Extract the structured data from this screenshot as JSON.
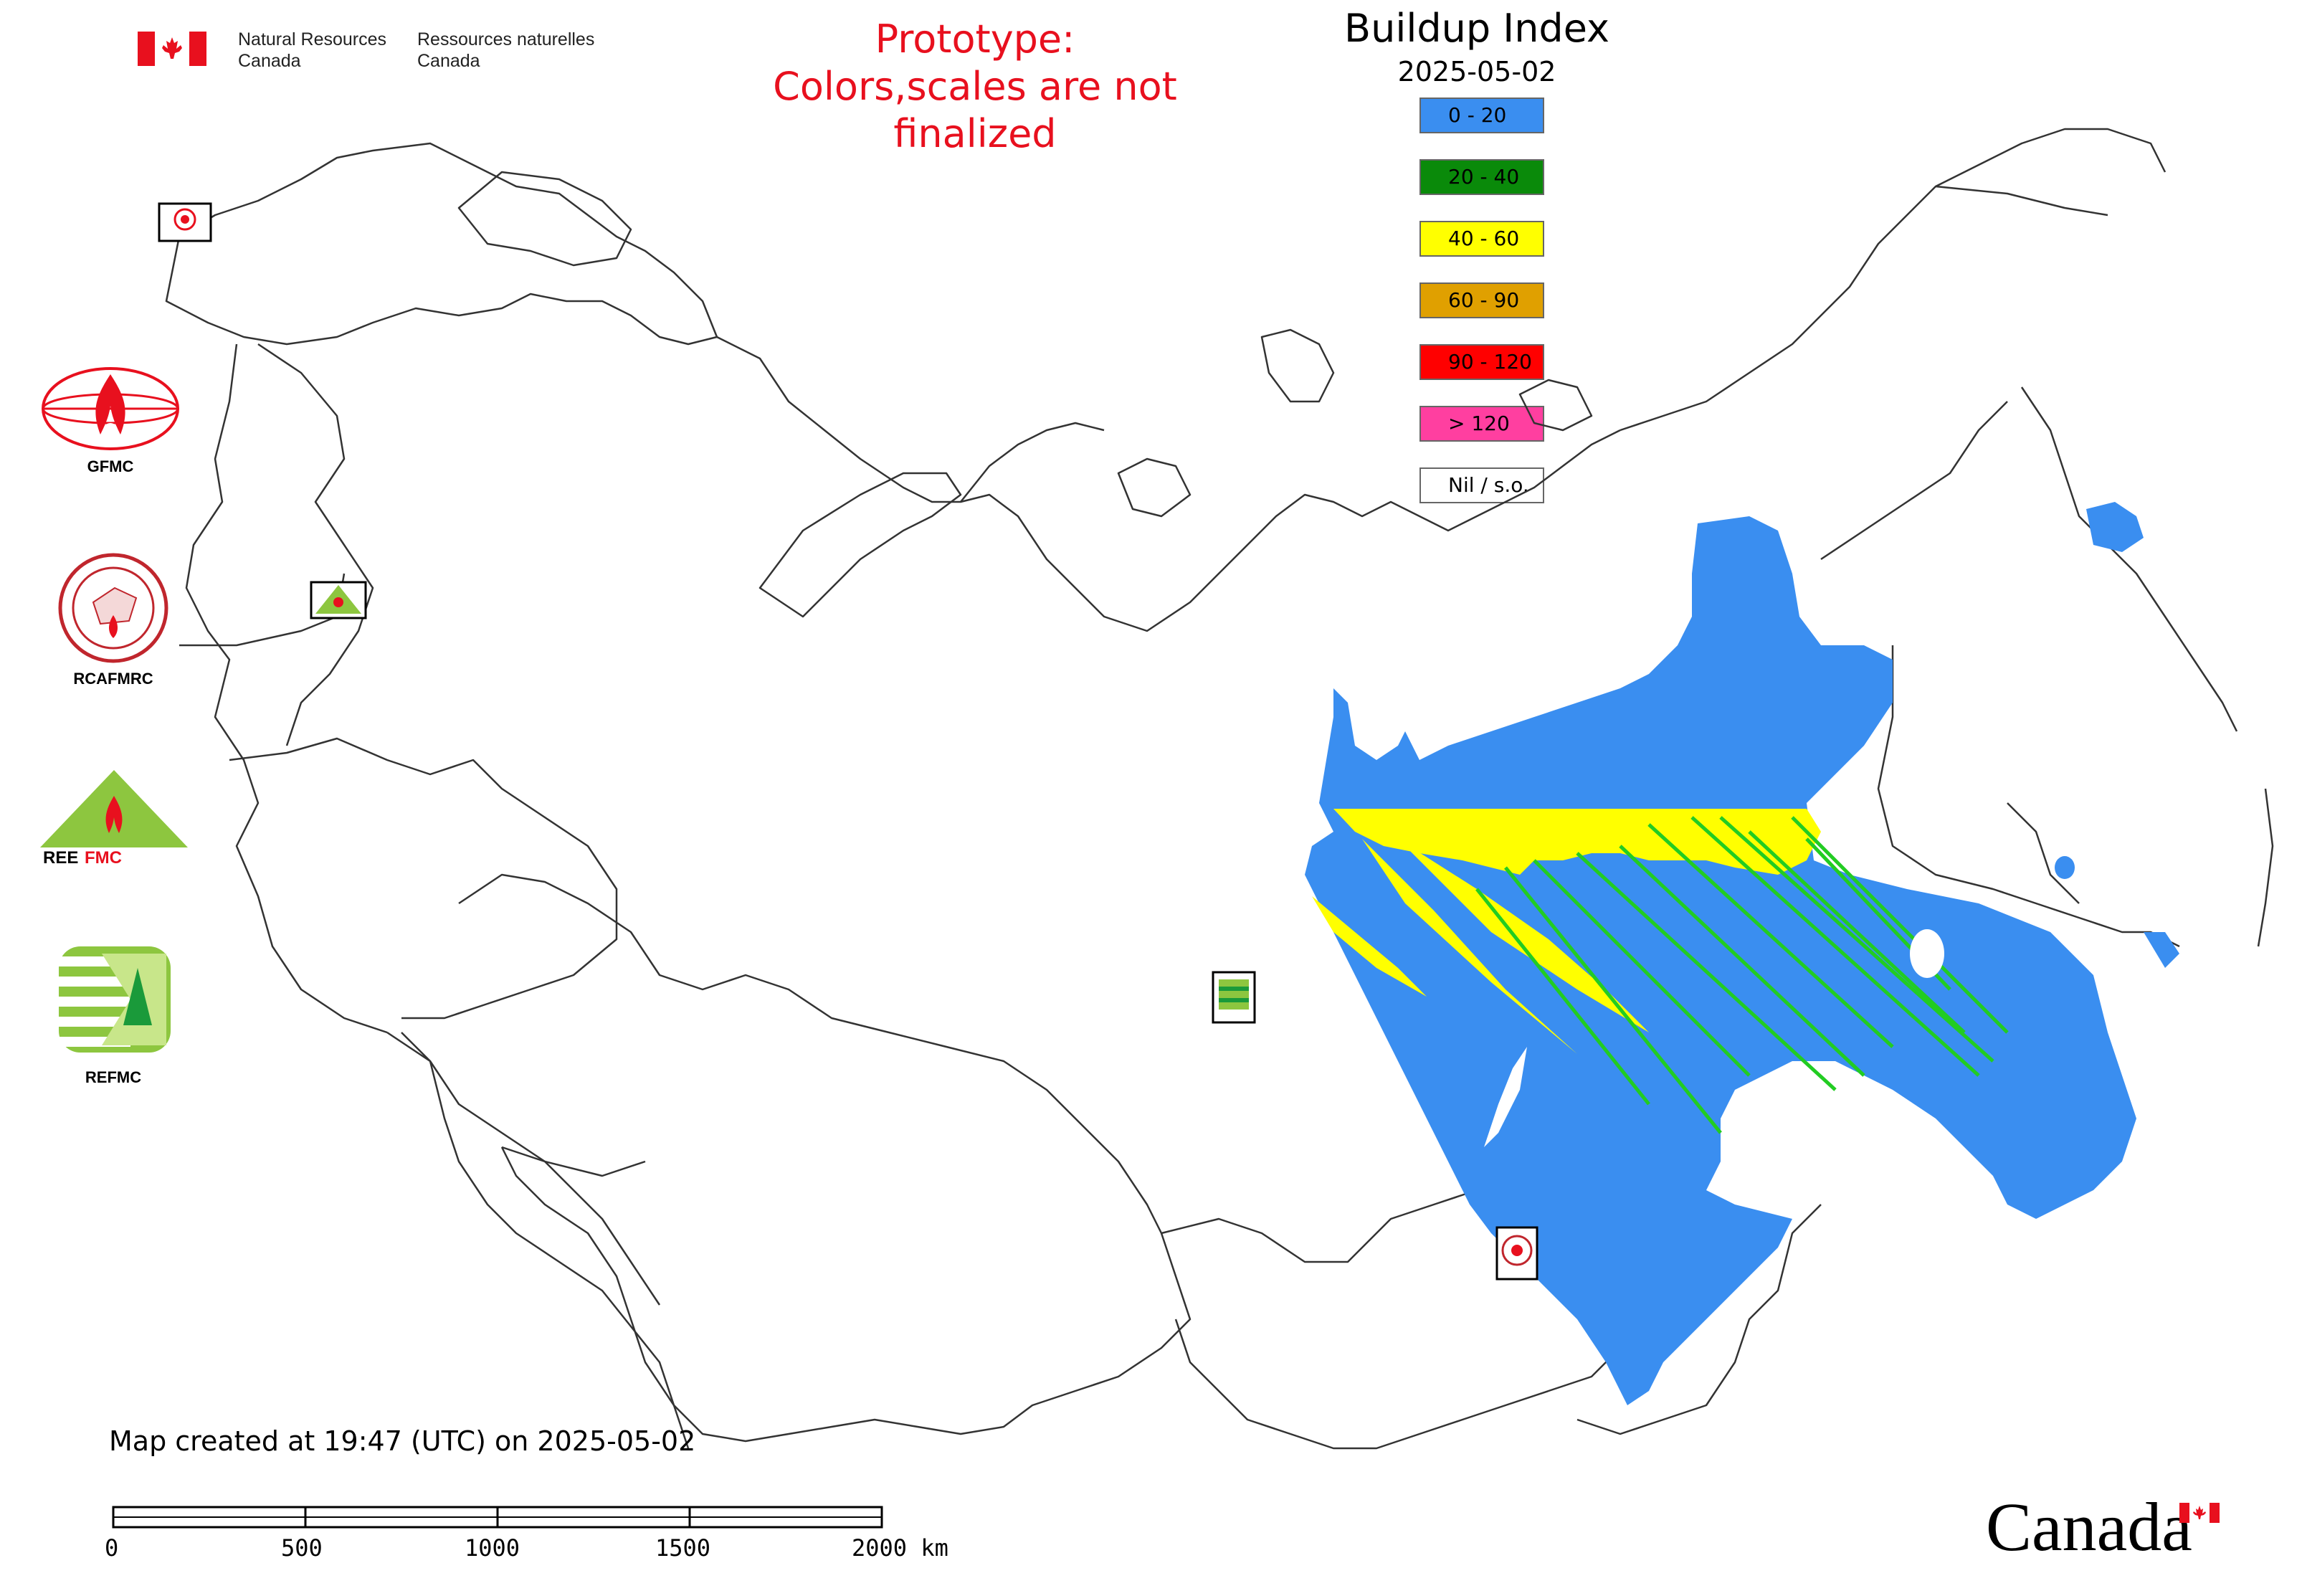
{
  "header": {
    "dept_en_line1": "Natural Resources",
    "dept_en_line2": "Canada",
    "dept_fr_line1": "Ressources naturelles",
    "dept_fr_line2": "Canada",
    "prototype_line1": "Prototype:",
    "prototype_line2": "Colors,scales are not finalized"
  },
  "legend": {
    "title": "Buildup Index",
    "date": "2025-05-02",
    "items": [
      {
        "label": "0 - 20",
        "color": "#3a8ef0"
      },
      {
        "label": "20 - 40",
        "color": "#0a8a0a"
      },
      {
        "label": "40 - 60",
        "color": "#ffff00"
      },
      {
        "label": "60 - 90",
        "color": "#e0a000"
      },
      {
        "label": "90 - 120",
        "color": "#ff0000"
      },
      {
        "label": "> 120",
        "color": "#ff3fa0"
      },
      {
        "label": "Nil / s.o.",
        "color": "#ffffff"
      }
    ]
  },
  "side_logos": [
    {
      "label": "GFMC",
      "icon": "gfmc-logo"
    },
    {
      "label": "RCAFMRC",
      "icon": "rcafmrc-logo"
    },
    {
      "label": "",
      "icon": "reefmc-logo"
    },
    {
      "label": "REFMC",
      "icon": "refmc-logo"
    }
  ],
  "footer": {
    "created_text": "Map created at 19:47 (UTC) on 2025-05-02",
    "scale_ticks": [
      "0",
      "500",
      "1000",
      "1500",
      "2000 km"
    ],
    "canada_wordmark": "Canada"
  },
  "colors": {
    "prototype_text": "#e8101e",
    "bui_low": "#3a8ef0",
    "bui_mid": "#ffff00",
    "bui_green": "#22cc22",
    "border": "#333333"
  }
}
